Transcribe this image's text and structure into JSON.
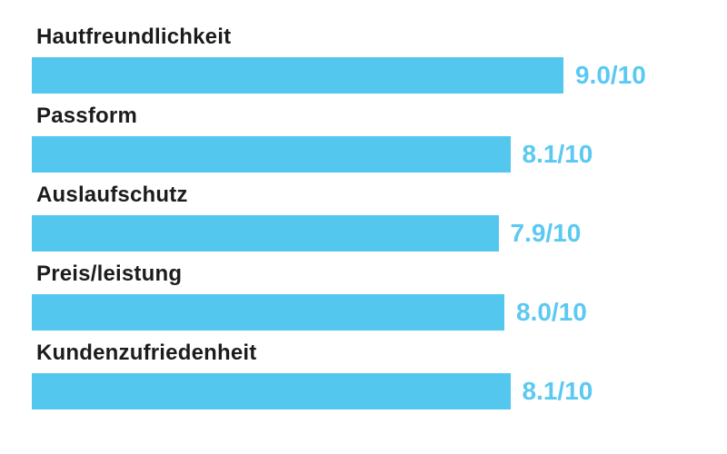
{
  "chart_data": {
    "type": "bar",
    "orientation": "horizontal",
    "title": "",
    "xlabel": "",
    "ylabel": "",
    "scale_max": 10,
    "grid": false,
    "legend": false,
    "categories": [
      "Hautfreundlichkeit",
      "Passform",
      "Auslaufschutz",
      "Preis/leistung",
      "Kundenzufriedenheit"
    ],
    "values": [
      9.0,
      8.1,
      7.9,
      8.0,
      8.1
    ],
    "value_labels": [
      "9.0/10",
      "8.1/10",
      "7.9/10",
      "8.0/10",
      "8.1/10"
    ],
    "bar_color": "#54c7ee",
    "value_text_color": "#5bc9f1",
    "label_text_color": "#1c1c1c",
    "background_color": "#ffffff",
    "rows": [
      {
        "label": "Hautfreundlichkeit",
        "value": 9.0,
        "display": "9.0/10"
      },
      {
        "label": "Passform",
        "value": 8.1,
        "display": "8.1/10"
      },
      {
        "label": "Auslaufschutz",
        "value": 7.9,
        "display": "7.9/10"
      },
      {
        "label": "Preis/leistung",
        "value": 8.0,
        "display": "8.0/10"
      },
      {
        "label": "Kundenzufriedenheit",
        "value": 8.1,
        "display": "8.1/10"
      }
    ]
  }
}
